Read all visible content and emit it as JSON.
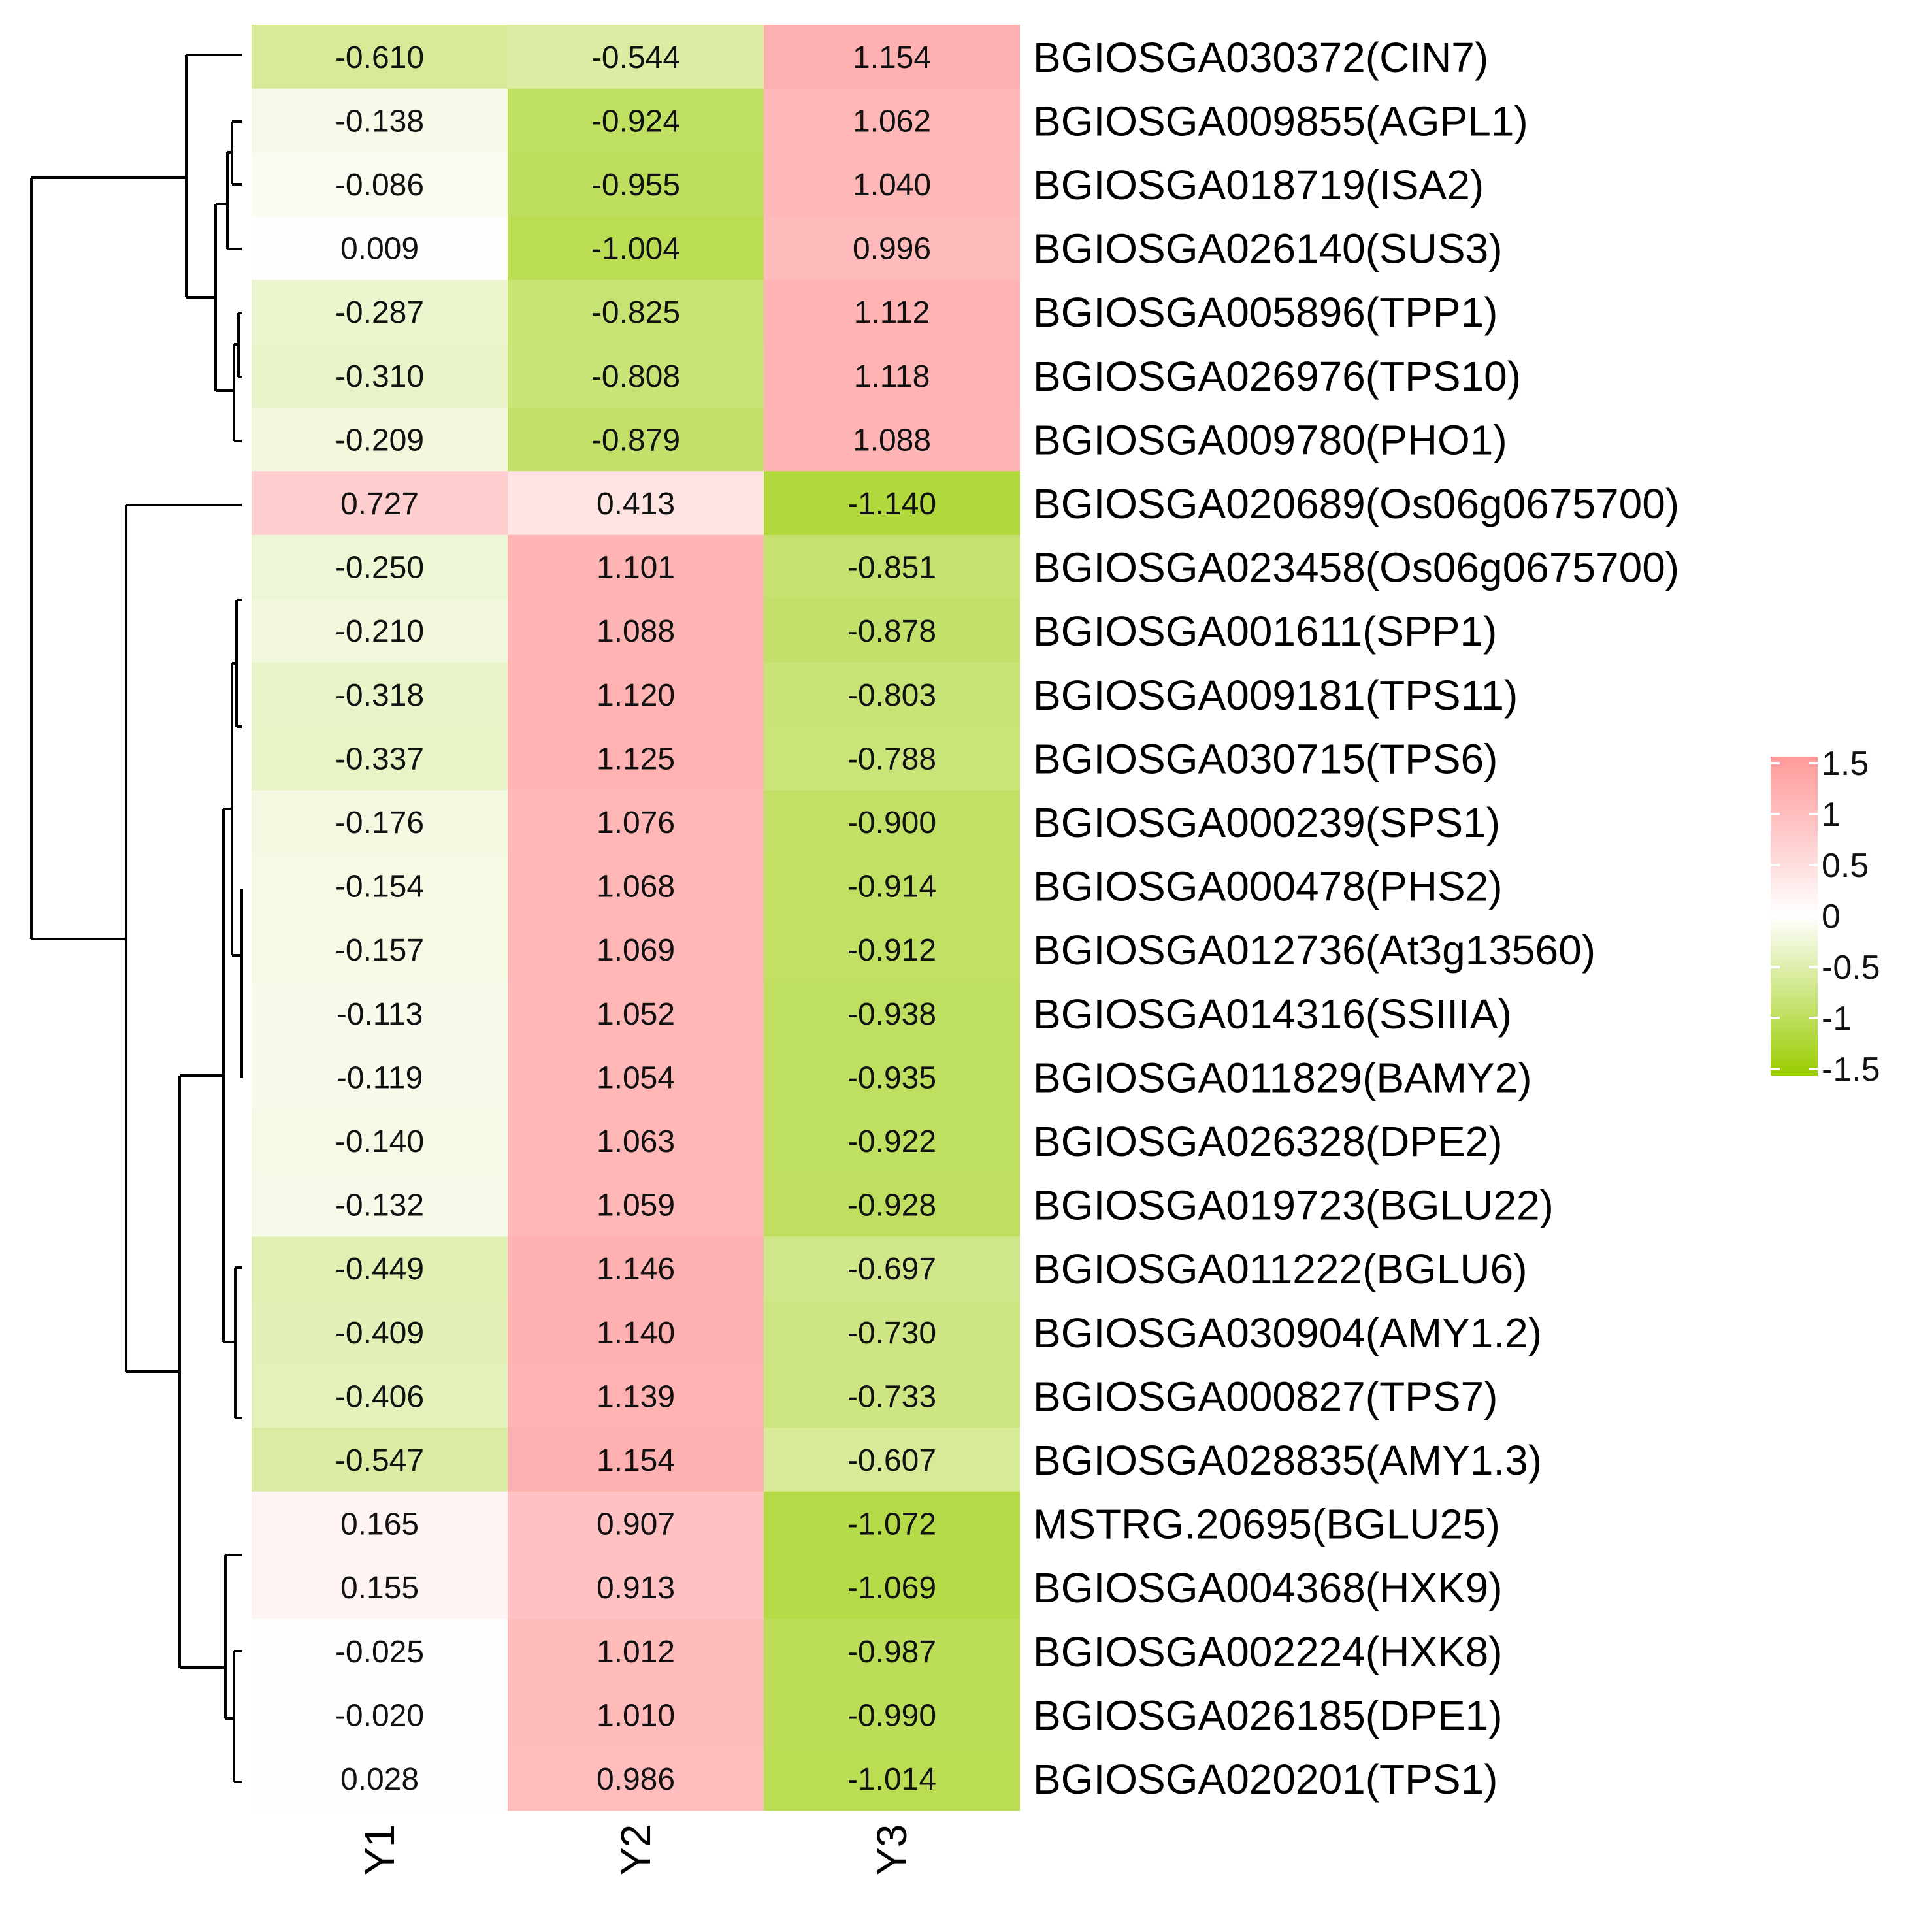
{
  "chart_data": {
    "type": "heatmap",
    "columns": [
      "Y1",
      "Y2",
      "Y3"
    ],
    "rows": [
      "BGIOSGA030372(CIN7)",
      "BGIOSGA009855(AGPL1)",
      "BGIOSGA018719(ISA2)",
      "BGIOSGA026140(SUS3)",
      "BGIOSGA005896(TPP1)",
      "BGIOSGA026976(TPS10)",
      "BGIOSGA009780(PHO1)",
      "BGIOSGA020689(Os06g0675700)",
      "BGIOSGA023458(Os06g0675700)",
      "BGIOSGA001611(SPP1)",
      "BGIOSGA009181(TPS11)",
      "BGIOSGA030715(TPS6)",
      "BGIOSGA000239(SPS1)",
      "BGIOSGA000478(PHS2)",
      "BGIOSGA012736(At3g13560)",
      "BGIOSGA014316(SSIIIA)",
      "BGIOSGA011829(BAMY2)",
      "BGIOSGA026328(DPE2)",
      "BGIOSGA019723(BGLU22)",
      "BGIOSGA011222(BGLU6)",
      "BGIOSGA030904(AMY1.2)",
      "BGIOSGA000827(TPS7)",
      "BGIOSGA028835(AMY1.3)",
      "MSTRG.20695(BGLU25)",
      "BGIOSGA004368(HXK9)",
      "BGIOSGA002224(HXK8)",
      "BGIOSGA026185(DPE1)",
      "BGIOSGA020201(TPS1)"
    ],
    "values": [
      [
        "-0.610",
        "-0.544",
        "1.154"
      ],
      [
        "-0.138",
        "-0.924",
        "1.062"
      ],
      [
        "-0.086",
        "-0.955",
        "1.040"
      ],
      [
        "0.009",
        "-1.004",
        "0.996"
      ],
      [
        "-0.287",
        "-0.825",
        "1.112"
      ],
      [
        "-0.310",
        "-0.808",
        "1.118"
      ],
      [
        "-0.209",
        "-0.879",
        "1.088"
      ],
      [
        "0.727",
        "0.413",
        "-1.140"
      ],
      [
        "-0.250",
        "1.101",
        "-0.851"
      ],
      [
        "-0.210",
        "1.088",
        "-0.878"
      ],
      [
        "-0.318",
        "1.120",
        "-0.803"
      ],
      [
        "-0.337",
        "1.125",
        "-0.788"
      ],
      [
        "-0.176",
        "1.076",
        "-0.900"
      ],
      [
        "-0.154",
        "1.068",
        "-0.914"
      ],
      [
        "-0.157",
        "1.069",
        "-0.912"
      ],
      [
        "-0.113",
        "1.052",
        "-0.938"
      ],
      [
        "-0.119",
        "1.054",
        "-0.935"
      ],
      [
        "-0.140",
        "1.063",
        "-0.922"
      ],
      [
        "-0.132",
        "1.059",
        "-0.928"
      ],
      [
        "-0.449",
        "1.146",
        "-0.697"
      ],
      [
        "-0.409",
        "1.140",
        "-0.730"
      ],
      [
        "-0.406",
        "1.139",
        "-0.733"
      ],
      [
        "-0.547",
        "1.154",
        "-0.607"
      ],
      [
        "0.165",
        "0.907",
        "-1.072"
      ],
      [
        "0.155",
        "0.913",
        "-1.069"
      ],
      [
        "-0.025",
        "1.012",
        "-0.987"
      ],
      [
        "-0.020",
        "1.010",
        "-0.990"
      ],
      [
        "0.028",
        "0.986",
        "-1.014"
      ]
    ],
    "color_scale": {
      "min": -1.5,
      "max": 1.5,
      "low_color": "#99cc00",
      "mid_color": "#ffffff",
      "high_color": "#ff9999"
    },
    "legend_ticks": [
      "1.5",
      "1",
      "0.5",
      "0",
      "-0.5",
      "-1",
      "-1.5"
    ],
    "legend_position": "right",
    "dendrogram": "row clustering tree on left"
  }
}
